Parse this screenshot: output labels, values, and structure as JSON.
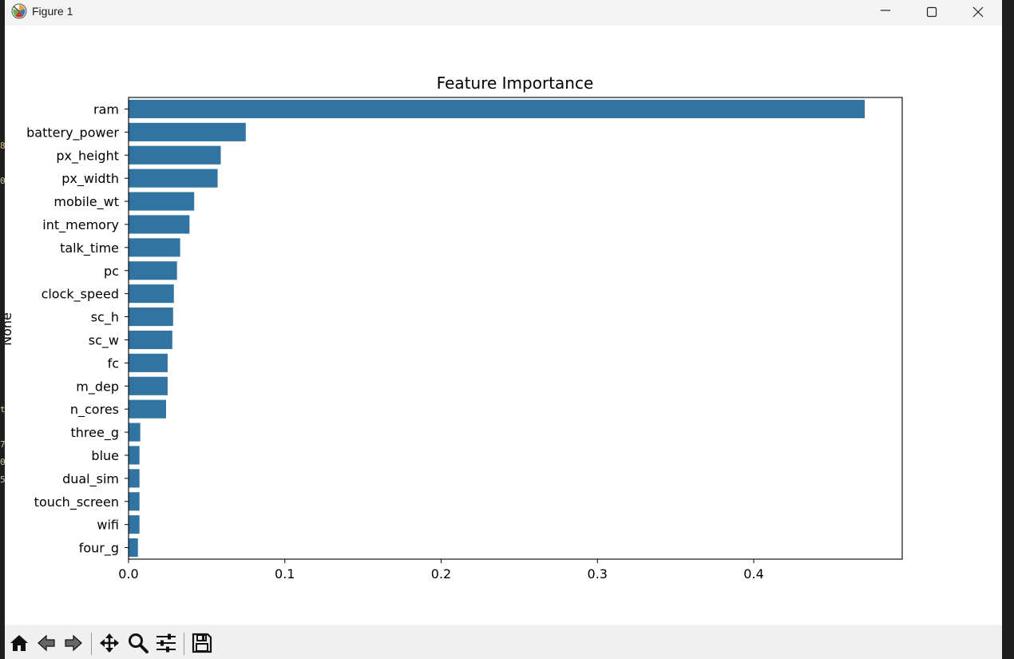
{
  "window": {
    "title": "Figure 1",
    "icon": "matplotlib-icon",
    "controls": [
      "minimize-icon",
      "maximize-icon",
      "close-icon"
    ]
  },
  "chart_data": {
    "type": "bar",
    "orientation": "horizontal",
    "title": "Feature Importance",
    "xlabel": "",
    "ylabel": "None",
    "xlim": [
      0,
      0.495
    ],
    "xticks": [
      0.0,
      0.1,
      0.2,
      0.3,
      0.4
    ],
    "xtick_labels": [
      "0.0",
      "0.1",
      "0.2",
      "0.3",
      "0.4"
    ],
    "grid": false,
    "bar_color": "#3274a1",
    "categories": [
      "ram",
      "battery_power",
      "px_height",
      "px_width",
      "mobile_wt",
      "int_memory",
      "talk_time",
      "pc",
      "clock_speed",
      "sc_h",
      "sc_w",
      "fc",
      "m_dep",
      "n_cores",
      "three_g",
      "blue",
      "dual_sim",
      "touch_screen",
      "wifi",
      "four_g"
    ],
    "values": [
      0.471,
      0.075,
      0.059,
      0.057,
      0.042,
      0.039,
      0.033,
      0.031,
      0.029,
      0.0285,
      0.028,
      0.025,
      0.025,
      0.024,
      0.0075,
      0.007,
      0.007,
      0.007,
      0.007,
      0.006
    ]
  },
  "toolbar": {
    "tools": [
      "home-icon",
      "back-icon",
      "forward-icon",
      "pan-icon",
      "zoom-icon",
      "configure-subplots-icon",
      "save-icon"
    ]
  },
  "background_edge": {
    "glyphs": [
      "8",
      "0",
      "t",
      "7",
      "0",
      "5"
    ],
    "colors": [
      "#d7ba7d",
      "#b5cea8",
      "#dcdcaa",
      "#b5cea8",
      "#b5cea8",
      "#b5cea8"
    ]
  }
}
